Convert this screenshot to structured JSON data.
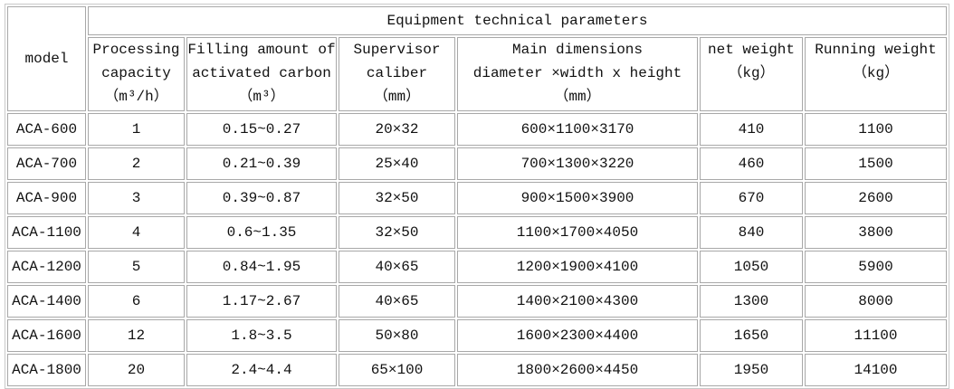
{
  "table": {
    "model_header": "model",
    "group_header": "Equipment technical parameters",
    "columns": [
      {
        "lines": [
          "Processing",
          "capacity",
          "（m³/h）"
        ]
      },
      {
        "lines": [
          "Filling amount of",
          "activated carbon",
          "（m³）"
        ]
      },
      {
        "lines": [
          "Supervisor",
          "caliber",
          "（mm）"
        ]
      },
      {
        "lines": [
          "Main dimensions",
          "diameter ×width x height",
          "（mm）"
        ]
      },
      {
        "lines": [
          "net weight",
          "（kg）"
        ]
      },
      {
        "lines": [
          "Running weight",
          "（kg）"
        ]
      }
    ],
    "rows": [
      [
        "ACA-600",
        "1",
        "0.15~0.27",
        "20×32",
        "600×1100×3170",
        "410",
        "1100"
      ],
      [
        "ACA-700",
        "2",
        "0.21~0.39",
        "25×40",
        "700×1300×3220",
        "460",
        "1500"
      ],
      [
        "ACA-900",
        "3",
        "0.39~0.87",
        "32×50",
        "900×1500×3900",
        "670",
        "2600"
      ],
      [
        "ACA-1100",
        "4",
        "0.6~1.35",
        "32×50",
        "1100×1700×4050",
        "840",
        "3800"
      ],
      [
        "ACA-1200",
        "5",
        "0.84~1.95",
        "40×65",
        "1200×1900×4100",
        "1050",
        "5900"
      ],
      [
        "ACA-1400",
        "6",
        "1.17~2.67",
        "40×65",
        "1400×2100×4300",
        "1300",
        "8000"
      ],
      [
        "ACA-1600",
        "12",
        "1.8~3.5",
        "50×80",
        "1600×2300×4400",
        "1650",
        "11100"
      ],
      [
        "ACA-1800",
        "20",
        "2.4~4.4",
        "65×100",
        "1800×2600×4450",
        "1950",
        "14100"
      ]
    ]
  }
}
